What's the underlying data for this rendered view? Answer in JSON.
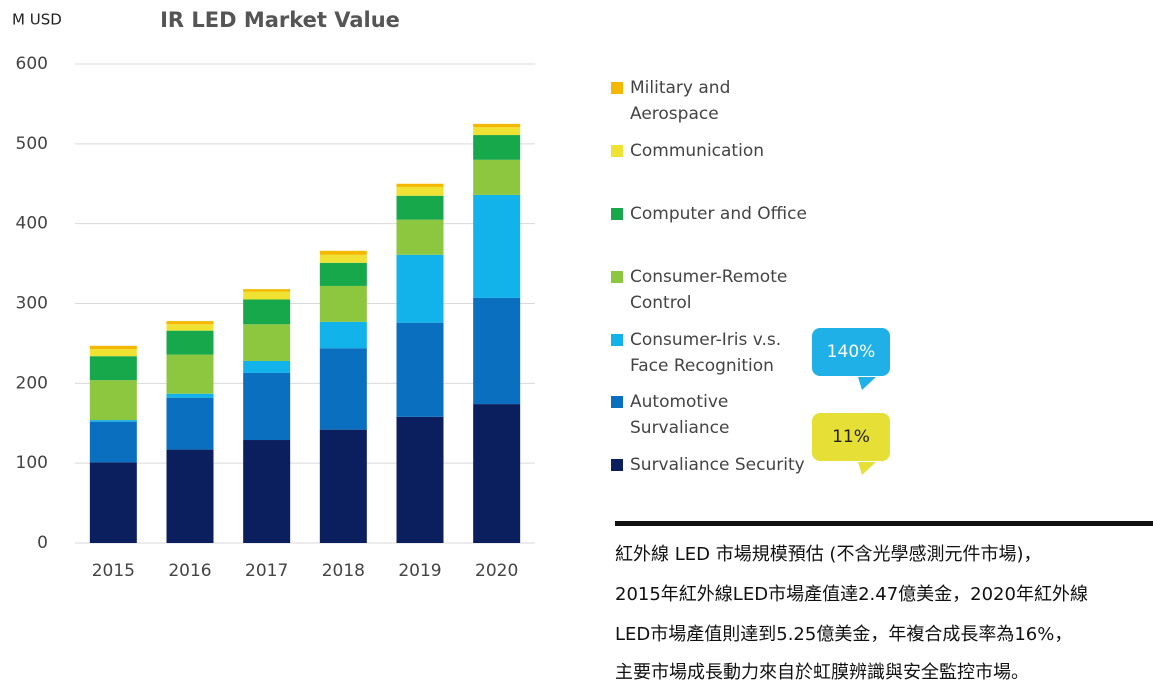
{
  "chart_data": {
    "type": "stacked_bar",
    "title": "IR LED Market Value",
    "y_label": "M USD",
    "categories": [
      "2015",
      "2016",
      "2017",
      "2018",
      "2019",
      "2020"
    ],
    "series": [
      {
        "name": "Survaliance Security",
        "color": "#0b1f5e",
        "values": [
          101,
          117,
          129,
          142,
          158,
          174
        ]
      },
      {
        "name": "Automotive Survaliance",
        "color": "#0a6fbf",
        "values": [
          51,
          65,
          84,
          102,
          118,
          133
        ]
      },
      {
        "name": "Consumer-Iris v.s. Face Recognition",
        "color": "#12b2ea",
        "values": [
          2,
          5,
          15,
          33,
          85,
          129
        ]
      },
      {
        "name": "Consumer-Remote Control",
        "color": "#8dc63f",
        "values": [
          50,
          49,
          46,
          45,
          44,
          44
        ]
      },
      {
        "name": "Computer and Office",
        "color": "#17a84b",
        "values": [
          30,
          30,
          31,
          29,
          30,
          31
        ]
      },
      {
        "name": "Communication",
        "color": "#f0e233",
        "values": [
          9,
          8,
          10,
          10,
          11,
          10
        ]
      },
      {
        "name": "Military and Aerospace",
        "color": "#f5b800",
        "values": [
          4,
          4,
          3,
          5,
          4,
          4
        ]
      }
    ],
    "ylim": [
      0,
      600
    ],
    "yticks": [
      0,
      100,
      200,
      300,
      400,
      500,
      600
    ],
    "grid": true,
    "annotations": [
      "140%",
      "11%"
    ],
    "note": [
      "紅外線 LED 市場規模預估 (不含光學感測元件市場)，",
      "2015年紅外線LED市場產值達2.47億美金，2020年紅外線",
      "LED市場產值則達到5.25億美金，年複合成長率為16%，",
      "主要市場成長動力來自於虹膜辨識與安全監控市場。"
    ]
  }
}
